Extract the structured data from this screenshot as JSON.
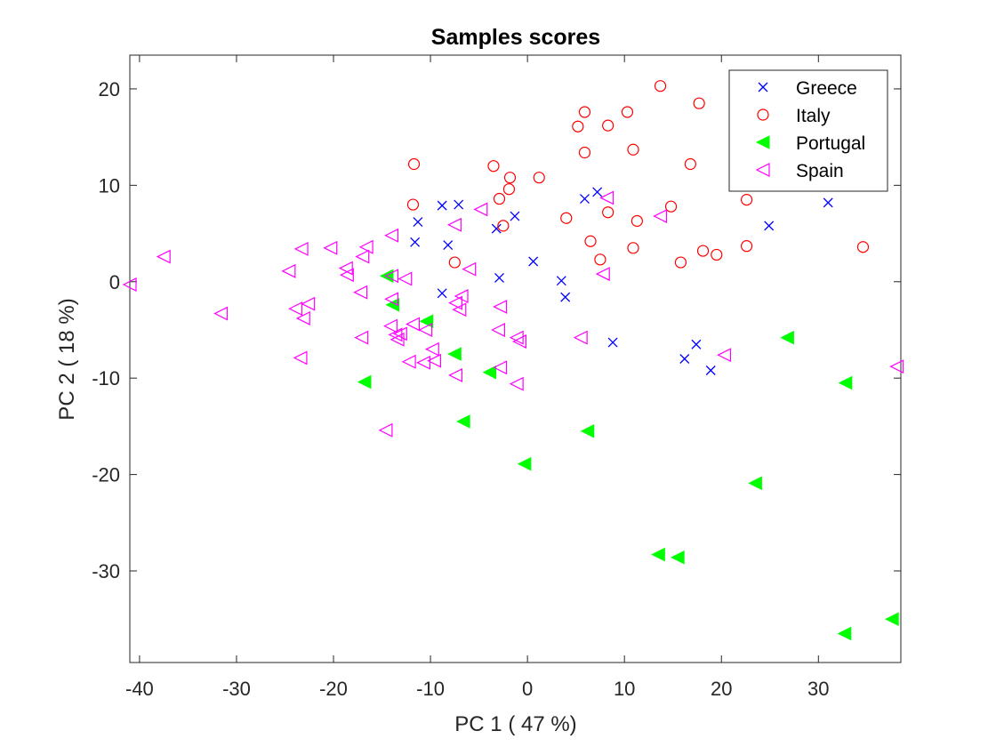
{
  "chart_data": {
    "type": "scatter",
    "title": "Samples scores",
    "xlabel": "PC 1 ( 47 %)",
    "ylabel": "PC 2 ( 18 %)",
    "xlim": [
      -41,
      38.5
    ],
    "ylim": [
      -39.5,
      23.5
    ],
    "xticks": [
      -40,
      -30,
      -20,
      -10,
      0,
      10,
      20,
      30
    ],
    "yticks": [
      -30,
      -20,
      -10,
      0,
      10,
      20
    ],
    "grid": false,
    "legend_position": "top-right",
    "series": [
      {
        "name": "Greece",
        "marker": "x",
        "color": "#0000ff",
        "points": [
          [
            -11.3,
            6.2
          ],
          [
            -11.6,
            4.1
          ],
          [
            -8.8,
            7.9
          ],
          [
            -7.1,
            8.0
          ],
          [
            -8.2,
            3.8
          ],
          [
            -1.3,
            6.8
          ],
          [
            -3.2,
            5.5
          ],
          [
            -8.8,
            -1.2
          ],
          [
            -2.9,
            0.4
          ],
          [
            0.6,
            2.1
          ],
          [
            3.5,
            0.1
          ],
          [
            3.9,
            -1.6
          ],
          [
            5.9,
            8.6
          ],
          [
            7.2,
            9.3
          ],
          [
            8.8,
            -6.3
          ],
          [
            17.4,
            -6.5
          ],
          [
            16.2,
            -8.0
          ],
          [
            18.9,
            -9.2
          ],
          [
            24.9,
            5.8
          ],
          [
            31.0,
            8.2
          ]
        ]
      },
      {
        "name": "Italy",
        "marker": "circle",
        "color": "#ff0000",
        "points": [
          [
            -11.7,
            12.2
          ],
          [
            -11.8,
            8.0
          ],
          [
            -3.5,
            12.0
          ],
          [
            -2.9,
            8.6
          ],
          [
            -1.8,
            10.8
          ],
          [
            -1.9,
            9.6
          ],
          [
            1.2,
            10.8
          ],
          [
            -2.5,
            5.8
          ],
          [
            -7.5,
            2.0
          ],
          [
            4.0,
            6.6
          ],
          [
            5.2,
            16.1
          ],
          [
            5.9,
            17.6
          ],
          [
            5.9,
            13.4
          ],
          [
            6.5,
            4.2
          ],
          [
            7.5,
            2.3
          ],
          [
            8.3,
            16.2
          ],
          [
            8.3,
            7.2
          ],
          [
            10.3,
            17.6
          ],
          [
            10.9,
            13.7
          ],
          [
            10.9,
            3.5
          ],
          [
            11.3,
            6.3
          ],
          [
            13.7,
            20.3
          ],
          [
            14.8,
            7.8
          ],
          [
            15.8,
            2.0
          ],
          [
            16.8,
            12.2
          ],
          [
            17.7,
            18.5
          ],
          [
            18.1,
            3.2
          ],
          [
            19.5,
            2.8
          ],
          [
            22.6,
            8.5
          ],
          [
            22.6,
            3.7
          ],
          [
            34.6,
            3.6
          ]
        ]
      },
      {
        "name": "Portugal",
        "marker": "triangle-left-filled",
        "color": "#00ff00",
        "points": [
          [
            -14.5,
            0.6
          ],
          [
            -13.9,
            -2.4
          ],
          [
            -10.4,
            -4.1
          ],
          [
            -7.5,
            -7.5
          ],
          [
            -16.8,
            -10.4
          ],
          [
            -6.6,
            -14.5
          ],
          [
            -3.9,
            -9.4
          ],
          [
            -0.3,
            -18.9
          ],
          [
            6.2,
            -15.5
          ],
          [
            13.5,
            -28.3
          ],
          [
            15.5,
            -28.6
          ],
          [
            23.5,
            -20.9
          ],
          [
            26.8,
            -5.8
          ],
          [
            32.8,
            -10.5
          ],
          [
            32.7,
            -36.5
          ],
          [
            37.6,
            -35.0
          ]
        ]
      },
      {
        "name": "Spain",
        "marker": "triangle-left",
        "color": "#ff00ff",
        "points": [
          [
            -41.0,
            -0.3
          ],
          [
            -37.5,
            2.6
          ],
          [
            -31.6,
            -3.3
          ],
          [
            -24.6,
            1.1
          ],
          [
            -23.9,
            -2.8
          ],
          [
            -23.3,
            3.4
          ],
          [
            -23.1,
            -3.8
          ],
          [
            -22.6,
            -2.3
          ],
          [
            -23.4,
            -7.9
          ],
          [
            -20.3,
            3.5
          ],
          [
            -18.7,
            1.4
          ],
          [
            -18.6,
            0.7
          ],
          [
            -17.0,
            2.6
          ],
          [
            -16.6,
            3.6
          ],
          [
            -17.2,
            -1.1
          ],
          [
            -17.1,
            -5.8
          ],
          [
            -14.6,
            -15.4
          ],
          [
            -14.0,
            4.8
          ],
          [
            -14.0,
            0.6
          ],
          [
            -14.0,
            -1.8
          ],
          [
            -14.1,
            -4.6
          ],
          [
            -13.6,
            -5.5
          ],
          [
            -13.1,
            -5.4
          ],
          [
            -13.4,
            -6.0
          ],
          [
            -12.6,
            0.3
          ],
          [
            -12.2,
            -8.3
          ],
          [
            -11.8,
            -4.4
          ],
          [
            -10.7,
            -8.4
          ],
          [
            -10.5,
            -5.0
          ],
          [
            -9.8,
            -7.0
          ],
          [
            -9.6,
            -8.2
          ],
          [
            -7.5,
            5.9
          ],
          [
            -7.4,
            -2.2
          ],
          [
            -6.8,
            -1.5
          ],
          [
            -7.0,
            -2.9
          ],
          [
            -7.4,
            -9.7
          ],
          [
            -6.0,
            1.3
          ],
          [
            -4.8,
            7.5
          ],
          [
            -2.8,
            -2.6
          ],
          [
            -3.0,
            -5.0
          ],
          [
            -2.8,
            -8.9
          ],
          [
            -1.1,
            -5.8
          ],
          [
            -0.8,
            -6.2
          ],
          [
            -1.1,
            -10.6
          ],
          [
            5.5,
            -5.8
          ],
          [
            8.2,
            8.7
          ],
          [
            7.8,
            0.8
          ],
          [
            13.7,
            6.8
          ],
          [
            20.3,
            -7.6
          ],
          [
            38.1,
            -8.8
          ]
        ]
      }
    ]
  }
}
